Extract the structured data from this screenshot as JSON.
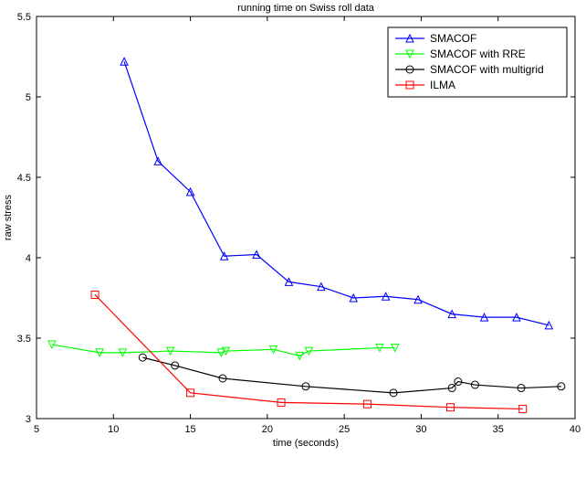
{
  "chart_data": {
    "type": "line",
    "title": "running time on Swiss roll data",
    "xlabel": "time (seconds)",
    "ylabel": "raw stress",
    "xlim": [
      5,
      40
    ],
    "ylim": [
      3,
      5.5
    ],
    "xticks": [
      5,
      10,
      15,
      20,
      25,
      30,
      35,
      40
    ],
    "yticks": [
      3,
      3.5,
      4,
      4.5,
      5,
      5.5
    ],
    "grid": false,
    "legend_position": "top-right",
    "series": [
      {
        "name": "SMACOF",
        "color": "#0000ff",
        "marker": "triangle-up",
        "x": [
          10.7,
          12.9,
          15.0,
          17.2,
          19.3,
          21.4,
          23.5,
          25.6,
          27.7,
          29.8,
          32.0,
          34.1,
          36.2,
          38.3
        ],
        "y": [
          5.22,
          4.6,
          4.41,
          4.01,
          4.02,
          3.85,
          3.82,
          3.75,
          3.76,
          3.74,
          3.65,
          3.63,
          3.63,
          3.58
        ]
      },
      {
        "name": "SMACOF with RRE",
        "color": "#00ff00",
        "marker": "triangle-down",
        "x": [
          6.0,
          9.1,
          10.6,
          13.7,
          17.0,
          17.3,
          20.4,
          22.1,
          22.7,
          27.3,
          28.3
        ],
        "y": [
          3.46,
          3.41,
          3.41,
          3.42,
          3.41,
          3.42,
          3.43,
          3.39,
          3.42,
          3.44,
          3.44
        ]
      },
      {
        "name": "SMACOF with multigrid",
        "color": "#000000",
        "marker": "circle",
        "x": [
          11.9,
          14.0,
          17.1,
          22.5,
          28.2,
          32.0,
          32.4,
          33.5,
          36.5,
          39.1
        ],
        "y": [
          3.38,
          3.33,
          3.25,
          3.2,
          3.16,
          3.19,
          3.23,
          3.21,
          3.19,
          3.2
        ]
      },
      {
        "name": "ILMA",
        "color": "#ff0000",
        "marker": "square",
        "x": [
          8.8,
          15.0,
          20.9,
          26.5,
          31.9,
          36.6
        ],
        "y": [
          3.77,
          3.16,
          3.1,
          3.09,
          3.07,
          3.06
        ]
      }
    ]
  }
}
